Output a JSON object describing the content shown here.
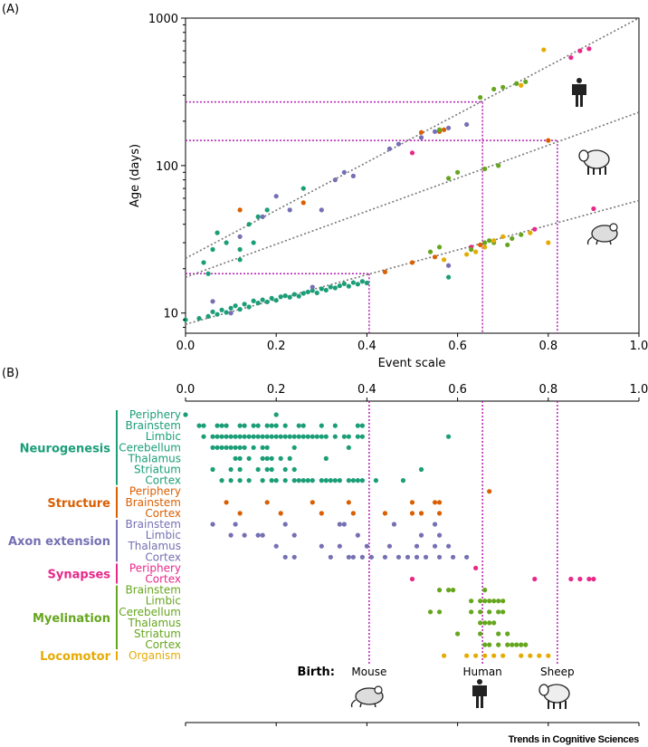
{
  "colors": {
    "neuro": "#1b9e77",
    "structure": "#d95f02",
    "axon": "#7570b3",
    "synapses": "#e7298a",
    "myelination": "#66a61e",
    "locomotor": "#e6ab02",
    "guide": "#b41fb4",
    "regression": "#777777"
  },
  "panel_a": {
    "label": "(A)",
    "chart_data": {
      "type": "scatter",
      "xlabel": "Event scale",
      "ylabel": "Age (days)",
      "xlim": [
        0,
        1
      ],
      "ylim": [
        7.3,
        1000
      ],
      "yscale": "log",
      "x_ticks": [
        "0.0",
        "0.2",
        "0.4",
        "0.6",
        "0.8",
        "1.0"
      ],
      "y_ticks": [
        "10",
        "100",
        "1000"
      ],
      "regressions": [
        {
          "species": "Human",
          "x": [
            0,
            1
          ],
          "y": [
            23.5,
            1000
          ]
        },
        {
          "species": "Sheep",
          "x": [
            0,
            1
          ],
          "y": [
            17.5,
            230
          ]
        },
        {
          "species": "Mouse",
          "x": [
            0,
            1
          ],
          "y": [
            8.4,
            58
          ]
        }
      ],
      "birth_guides": [
        {
          "species": "Mouse",
          "x": 0.405,
          "y": 18.5
        },
        {
          "species": "Human",
          "x": 0.655,
          "y": 270
        },
        {
          "species": "Sheep",
          "x": 0.82,
          "y": 148
        }
      ],
      "series": [
        {
          "name": "Neurogenesis",
          "color_key": "neuro",
          "points": [
            [
              0.0,
              9.0
            ],
            [
              0.03,
              9.2
            ],
            [
              0.05,
              9.5
            ],
            [
              0.06,
              10.2
            ],
            [
              0.07,
              9.8
            ],
            [
              0.08,
              10.5
            ],
            [
              0.09,
              10.1
            ],
            [
              0.1,
              10.8
            ],
            [
              0.11,
              11.2
            ],
            [
              0.12,
              10.6
            ],
            [
              0.13,
              11.5
            ],
            [
              0.14,
              11.0
            ],
            [
              0.15,
              12.1
            ],
            [
              0.16,
              11.7
            ],
            [
              0.17,
              12.3
            ],
            [
              0.18,
              11.9
            ],
            [
              0.19,
              12.6
            ],
            [
              0.2,
              12.2
            ],
            [
              0.21,
              12.9
            ],
            [
              0.22,
              13.1
            ],
            [
              0.23,
              12.8
            ],
            [
              0.24,
              13.4
            ],
            [
              0.25,
              13.0
            ],
            [
              0.26,
              13.6
            ],
            [
              0.27,
              13.9
            ],
            [
              0.28,
              14.2
            ],
            [
              0.29,
              13.7
            ],
            [
              0.3,
              14.6
            ],
            [
              0.31,
              14.3
            ],
            [
              0.32,
              15.0
            ],
            [
              0.33,
              14.8
            ],
            [
              0.34,
              15.3
            ],
            [
              0.35,
              15.8
            ],
            [
              0.36,
              15.2
            ],
            [
              0.37,
              16.1
            ],
            [
              0.38,
              15.7
            ],
            [
              0.39,
              16.4
            ],
            [
              0.4,
              16.0
            ],
            [
              0.58,
              17.5
            ],
            [
              0.04,
              22.0
            ],
            [
              0.06,
              27.0
            ],
            [
              0.07,
              35.0
            ],
            [
              0.09,
              30.0
            ],
            [
              0.12,
              27.0
            ],
            [
              0.14,
              40.0
            ],
            [
              0.15,
              30.0
            ],
            [
              0.16,
              45.0
            ],
            [
              0.18,
              50.0
            ],
            [
              0.26,
              70.0
            ],
            [
              0.05,
              18.5
            ],
            [
              0.12,
              23.0
            ]
          ]
        },
        {
          "name": "Structure",
          "color_key": "structure",
          "points": [
            [
              0.12,
              50.0
            ],
            [
              0.26,
              56.0
            ],
            [
              0.44,
              19.0
            ],
            [
              0.5,
              22.0
            ],
            [
              0.52,
              168.0
            ],
            [
              0.55,
              24.0
            ],
            [
              0.56,
              170.0
            ],
            [
              0.57,
              175.0
            ],
            [
              0.65,
              29.0
            ],
            [
              0.8,
              148.0
            ]
          ]
        },
        {
          "name": "Axon extension",
          "color_key": "axon",
          "points": [
            [
              0.06,
              12.0
            ],
            [
              0.1,
              10.0
            ],
            [
              0.12,
              33.0
            ],
            [
              0.17,
              45.0
            ],
            [
              0.2,
              62.0
            ],
            [
              0.23,
              50.0
            ],
            [
              0.28,
              15.0
            ],
            [
              0.3,
              50.0
            ],
            [
              0.33,
              80.0
            ],
            [
              0.35,
              90.0
            ],
            [
              0.37,
              85.0
            ],
            [
              0.45,
              130.0
            ],
            [
              0.47,
              140.0
            ],
            [
              0.52,
              155.0
            ],
            [
              0.55,
              170.0
            ],
            [
              0.58,
              180.0
            ],
            [
              0.58,
              21.0
            ],
            [
              0.62,
              190.0
            ]
          ]
        },
        {
          "name": "Synapses",
          "color_key": "synapses",
          "points": [
            [
              0.5,
              122.0
            ],
            [
              0.63,
              28.0
            ],
            [
              0.77,
              37.0
            ],
            [
              0.85,
              540.0
            ],
            [
              0.87,
              600.0
            ],
            [
              0.89,
              620.0
            ],
            [
              0.9,
              51.0
            ]
          ]
        },
        {
          "name": "Myelination",
          "color_key": "myelination",
          "points": [
            [
              0.56,
              175.0
            ],
            [
              0.58,
              82.0
            ],
            [
              0.6,
              90.0
            ],
            [
              0.63,
              27.0
            ],
            [
              0.65,
              290.0
            ],
            [
              0.66,
              95.0
            ],
            [
              0.67,
              31.0
            ],
            [
              0.68,
              330.0
            ],
            [
              0.69,
              100.0
            ],
            [
              0.7,
              340.0
            ],
            [
              0.71,
              29.0
            ],
            [
              0.72,
              32.0
            ],
            [
              0.73,
              360.0
            ],
            [
              0.74,
              34.0
            ],
            [
              0.75,
              370.0
            ],
            [
              0.54,
              26.0
            ],
            [
              0.56,
              28.0
            ],
            [
              0.66,
              30.0
            ],
            [
              0.68,
              30.0
            ]
          ]
        },
        {
          "name": "Locomotor",
          "color_key": "locomotor",
          "points": [
            [
              0.57,
              23.0
            ],
            [
              0.62,
              25.0
            ],
            [
              0.64,
              26.0
            ],
            [
              0.66,
              28.0
            ],
            [
              0.68,
              31.0
            ],
            [
              0.7,
              33.0
            ],
            [
              0.74,
              350.0
            ],
            [
              0.76,
              35.0
            ],
            [
              0.8,
              30.0
            ],
            [
              0.79,
              610.0
            ]
          ]
        }
      ]
    }
  },
  "panel_b": {
    "label": "(B)",
    "chart_data": {
      "type": "scatter",
      "xlim": [
        0,
        1
      ],
      "x_ticks": [
        "0.0",
        "0.2",
        "0.4",
        "0.6",
        "0.8",
        "1.0"
      ],
      "categories": [
        {
          "name": "Neurogenesis",
          "color_key": "neuro",
          "rows": [
            {
              "label": "Periphery",
              "x": [
                0.0,
                0.2
              ]
            },
            {
              "label": "Brainstem",
              "x": [
                0.03,
                0.04,
                0.07,
                0.08,
                0.09,
                0.12,
                0.13,
                0.15,
                0.16,
                0.18,
                0.19,
                0.2,
                0.22,
                0.25,
                0.26,
                0.3,
                0.33,
                0.38,
                0.39
              ]
            },
            {
              "label": "Limbic",
              "x": [
                0.04,
                0.06,
                0.07,
                0.08,
                0.09,
                0.1,
                0.11,
                0.12,
                0.13,
                0.14,
                0.15,
                0.16,
                0.17,
                0.18,
                0.19,
                0.2,
                0.21,
                0.22,
                0.23,
                0.24,
                0.25,
                0.26,
                0.27,
                0.28,
                0.29,
                0.3,
                0.31,
                0.33,
                0.35,
                0.36,
                0.38,
                0.39,
                0.58
              ]
            },
            {
              "label": "Cerebellum",
              "x": [
                0.06,
                0.07,
                0.08,
                0.09,
                0.1,
                0.11,
                0.12,
                0.13,
                0.15,
                0.17,
                0.18,
                0.24,
                0.36
              ]
            },
            {
              "label": "Thalamus",
              "x": [
                0.11,
                0.12,
                0.14,
                0.17,
                0.18,
                0.19,
                0.21,
                0.23,
                0.31
              ]
            },
            {
              "label": "Striatum",
              "x": [
                0.06,
                0.1,
                0.12,
                0.16,
                0.18,
                0.19,
                0.22,
                0.24,
                0.52
              ]
            },
            {
              "label": "Cortex",
              "x": [
                0.08,
                0.1,
                0.12,
                0.14,
                0.17,
                0.19,
                0.2,
                0.22,
                0.24,
                0.25,
                0.26,
                0.27,
                0.28,
                0.3,
                0.31,
                0.32,
                0.33,
                0.34,
                0.36,
                0.37,
                0.38,
                0.39,
                0.42,
                0.48
              ]
            }
          ]
        },
        {
          "name": "Structure",
          "color_key": "structure",
          "rows": [
            {
              "label": "Periphery",
              "x": [
                0.67
              ]
            },
            {
              "label": "Brainstem",
              "x": [
                0.09,
                0.18,
                0.28,
                0.36,
                0.5,
                0.55,
                0.56
              ]
            },
            {
              "label": "Cortex",
              "x": [
                0.12,
                0.21,
                0.3,
                0.37,
                0.44,
                0.5,
                0.52,
                0.56
              ]
            }
          ]
        },
        {
          "name": "Axon extension",
          "color_key": "axon",
          "rows": [
            {
              "label": "Brainstem",
              "x": [
                0.06,
                0.11,
                0.22,
                0.34,
                0.35,
                0.46,
                0.55
              ]
            },
            {
              "label": "Limbic",
              "x": [
                0.1,
                0.13,
                0.16,
                0.17,
                0.24,
                0.38,
                0.52,
                0.56
              ]
            },
            {
              "label": "Thalamus",
              "x": [
                0.2,
                0.3,
                0.34,
                0.4,
                0.45,
                0.51,
                0.55,
                0.58
              ]
            },
            {
              "label": "Cortex",
              "x": [
                0.22,
                0.24,
                0.32,
                0.36,
                0.37,
                0.39,
                0.41,
                0.44,
                0.47,
                0.49,
                0.51,
                0.53,
                0.56,
                0.59,
                0.62
              ]
            }
          ]
        },
        {
          "name": "Synapses",
          "color_key": "synapses",
          "rows": [
            {
              "label": "Periphery",
              "x": [
                0.64
              ]
            },
            {
              "label": "Cortex",
              "x": [
                0.5,
                0.77,
                0.85,
                0.87,
                0.89,
                0.9
              ]
            }
          ]
        },
        {
          "name": "Myelination",
          "color_key": "myelination",
          "rows": [
            {
              "label": "Brainstem",
              "x": [
                0.56,
                0.58,
                0.59,
                0.66
              ]
            },
            {
              "label": "Limbic",
              "x": [
                0.63,
                0.65,
                0.66,
                0.67,
                0.68,
                0.69,
                0.7
              ]
            },
            {
              "label": "Cerebellum",
              "x": [
                0.54,
                0.56,
                0.63,
                0.65,
                0.67,
                0.69,
                0.7
              ]
            },
            {
              "label": "Thalamus",
              "x": [
                0.65,
                0.66,
                0.67,
                0.68
              ]
            },
            {
              "label": "Striatum",
              "x": [
                0.6,
                0.65,
                0.69,
                0.71
              ]
            },
            {
              "label": "Cortex",
              "x": [
                0.66,
                0.67,
                0.69,
                0.71,
                0.72,
                0.73,
                0.74,
                0.75
              ]
            }
          ]
        },
        {
          "name": "Locomotor",
          "color_key": "locomotor",
          "rows": [
            {
              "label": "Organism",
              "x": [
                0.57,
                0.62,
                0.64,
                0.66,
                0.68,
                0.7,
                0.74,
                0.76,
                0.78,
                0.8
              ]
            }
          ]
        }
      ],
      "birth_label": "Birth:",
      "births": [
        {
          "species": "Mouse",
          "x": 0.405
        },
        {
          "species": "Human",
          "x": 0.655
        },
        {
          "species": "Sheep",
          "x": 0.82
        }
      ]
    }
  },
  "credit": "Trends in Cognitive Sciences"
}
